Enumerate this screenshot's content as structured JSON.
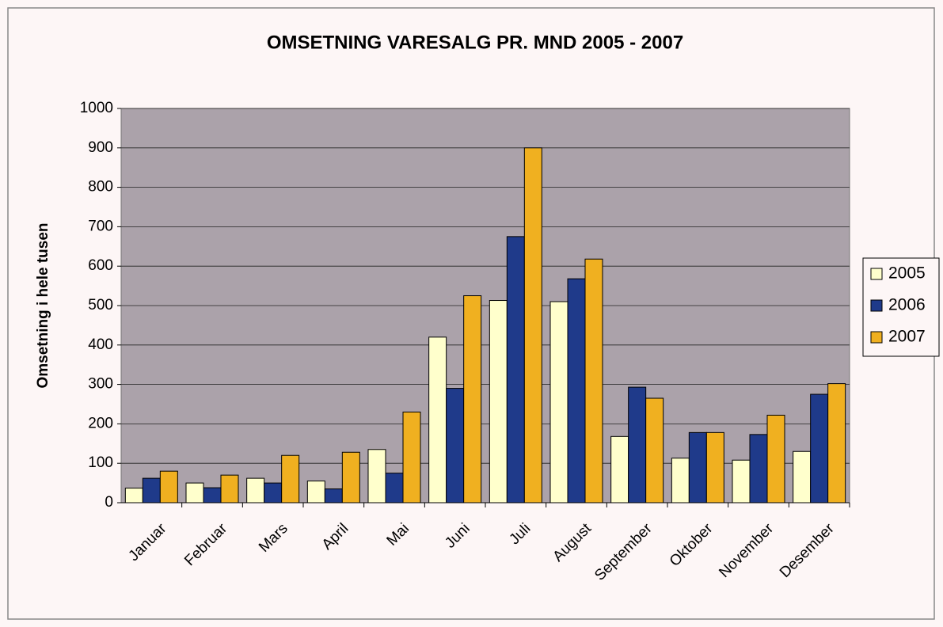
{
  "chart_data": {
    "type": "bar",
    "title": "OMSETNING VARESALG PR. MND  2005 - 2007",
    "y_label": "Omsetning i hele tusen",
    "categories": [
      "Januar",
      "Februar",
      "Mars",
      "April",
      "Mai",
      "Juni",
      "Juli",
      "August",
      "September",
      "Oktober",
      "November",
      "Desember"
    ],
    "series": [
      {
        "name": "2005",
        "color": "#ffffcc",
        "values": [
          37,
          50,
          62,
          55,
          135,
          420,
          513,
          510,
          168,
          113,
          108,
          130
        ]
      },
      {
        "name": "2006",
        "color": "#1f3a8a",
        "values": [
          62,
          38,
          50,
          35,
          75,
          290,
          675,
          568,
          293,
          178,
          173,
          275
        ]
      },
      {
        "name": "2007",
        "color": "#f0b020",
        "values": [
          80,
          70,
          120,
          128,
          230,
          525,
          900,
          618,
          265,
          178,
          222,
          302
        ]
      }
    ],
    "ylim": [
      0,
      1000
    ],
    "yticks": [
      0,
      100,
      200,
      300,
      400,
      500,
      600,
      700,
      800,
      900,
      1000
    ],
    "grid": true,
    "legend": "right"
  }
}
